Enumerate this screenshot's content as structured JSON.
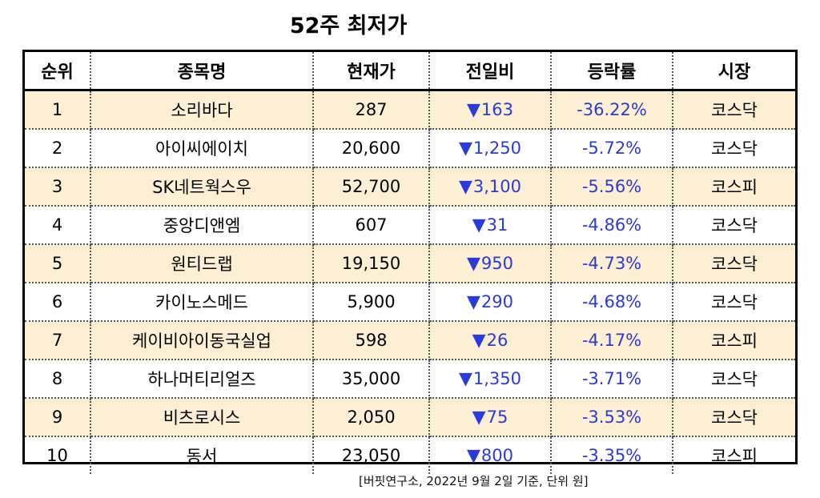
{
  "title": "52주 최저가",
  "headers": [
    "순위",
    "종목명",
    "현재가",
    "전일비",
    "등락률",
    "시장"
  ],
  "arrow_symbol": "▼",
  "colors": {
    "shaded_row": "#fcefd4",
    "down_blue": "#2b3bd6"
  },
  "rows": [
    {
      "rank": "1",
      "name": "소리바다",
      "price": "287",
      "change": "163",
      "rate": "-36.22%",
      "market": "코스닥"
    },
    {
      "rank": "2",
      "name": "아이씨에이치",
      "price": "20,600",
      "change": "1,250",
      "rate": "-5.72%",
      "market": "코스닥"
    },
    {
      "rank": "3",
      "name": "SK네트웍스우",
      "price": "52,700",
      "change": "3,100",
      "rate": "-5.56%",
      "market": "코스피"
    },
    {
      "rank": "4",
      "name": "중앙디앤엠",
      "price": "607",
      "change": "31",
      "rate": "-4.86%",
      "market": "코스닥"
    },
    {
      "rank": "5",
      "name": "원티드랩",
      "price": "19,150",
      "change": "950",
      "rate": "-4.73%",
      "market": "코스닥"
    },
    {
      "rank": "6",
      "name": "카이노스메드",
      "price": "5,900",
      "change": "290",
      "rate": "-4.68%",
      "market": "코스닥"
    },
    {
      "rank": "7",
      "name": "케이비아이동국실업",
      "price": "598",
      "change": "26",
      "rate": "-4.17%",
      "market": "코스피"
    },
    {
      "rank": "8",
      "name": "하나머티리얼즈",
      "price": "35,000",
      "change": "1,350",
      "rate": "-3.71%",
      "market": "코스닥"
    },
    {
      "rank": "9",
      "name": "비츠로시스",
      "price": "2,050",
      "change": "75",
      "rate": "-3.53%",
      "market": "코스닥"
    },
    {
      "rank": "10",
      "name": "동서",
      "price": "23,050",
      "change": "800",
      "rate": "-3.35%",
      "market": "코스피"
    }
  ],
  "footnote": "[버핏연구소, 2022년 9월 2일 기준, 단위 원]"
}
